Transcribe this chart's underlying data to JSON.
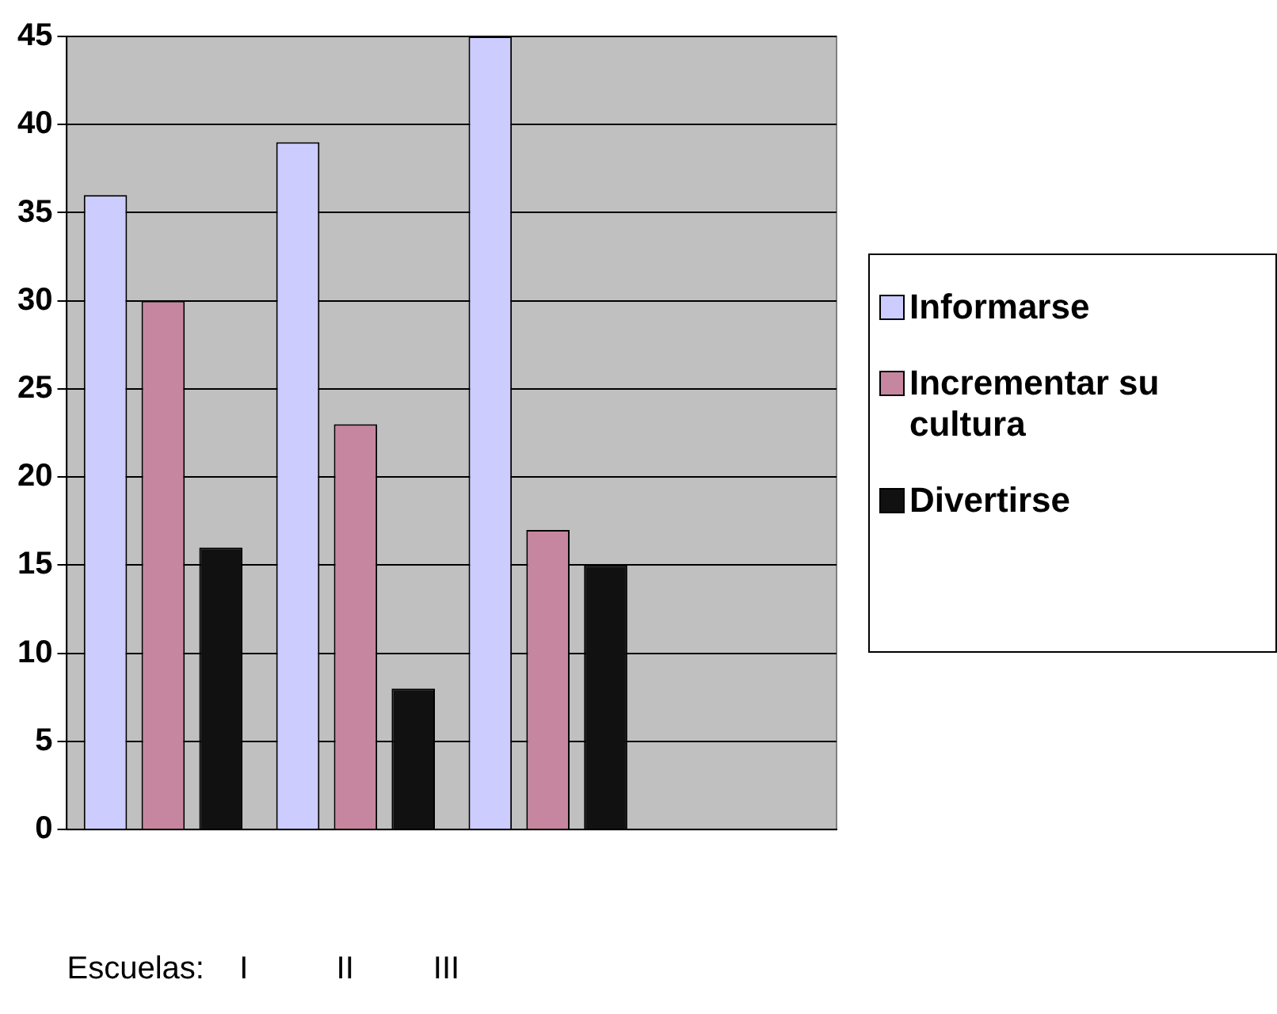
{
  "chart_data": {
    "type": "bar",
    "xlabel": "Escuelas:    I          II         III",
    "categories": [
      null,
      null,
      null,
      null
    ],
    "series": [
      {
        "name": "Informarse",
        "color": "#ccccff",
        "values": [
          36,
          39,
          45,
          null
        ]
      },
      {
        "name": "Incrementar su cultura",
        "color": "#c7869f",
        "values": [
          30,
          23,
          17,
          null
        ]
      },
      {
        "name": "Divertirse",
        "color": "#111111",
        "values": [
          16,
          8,
          15,
          null
        ]
      }
    ],
    "ylim": [
      0,
      45
    ],
    "yticks": [
      0,
      5,
      10,
      15,
      20,
      25,
      30,
      35,
      40,
      45
    ],
    "grid": "y",
    "legend": "right"
  }
}
